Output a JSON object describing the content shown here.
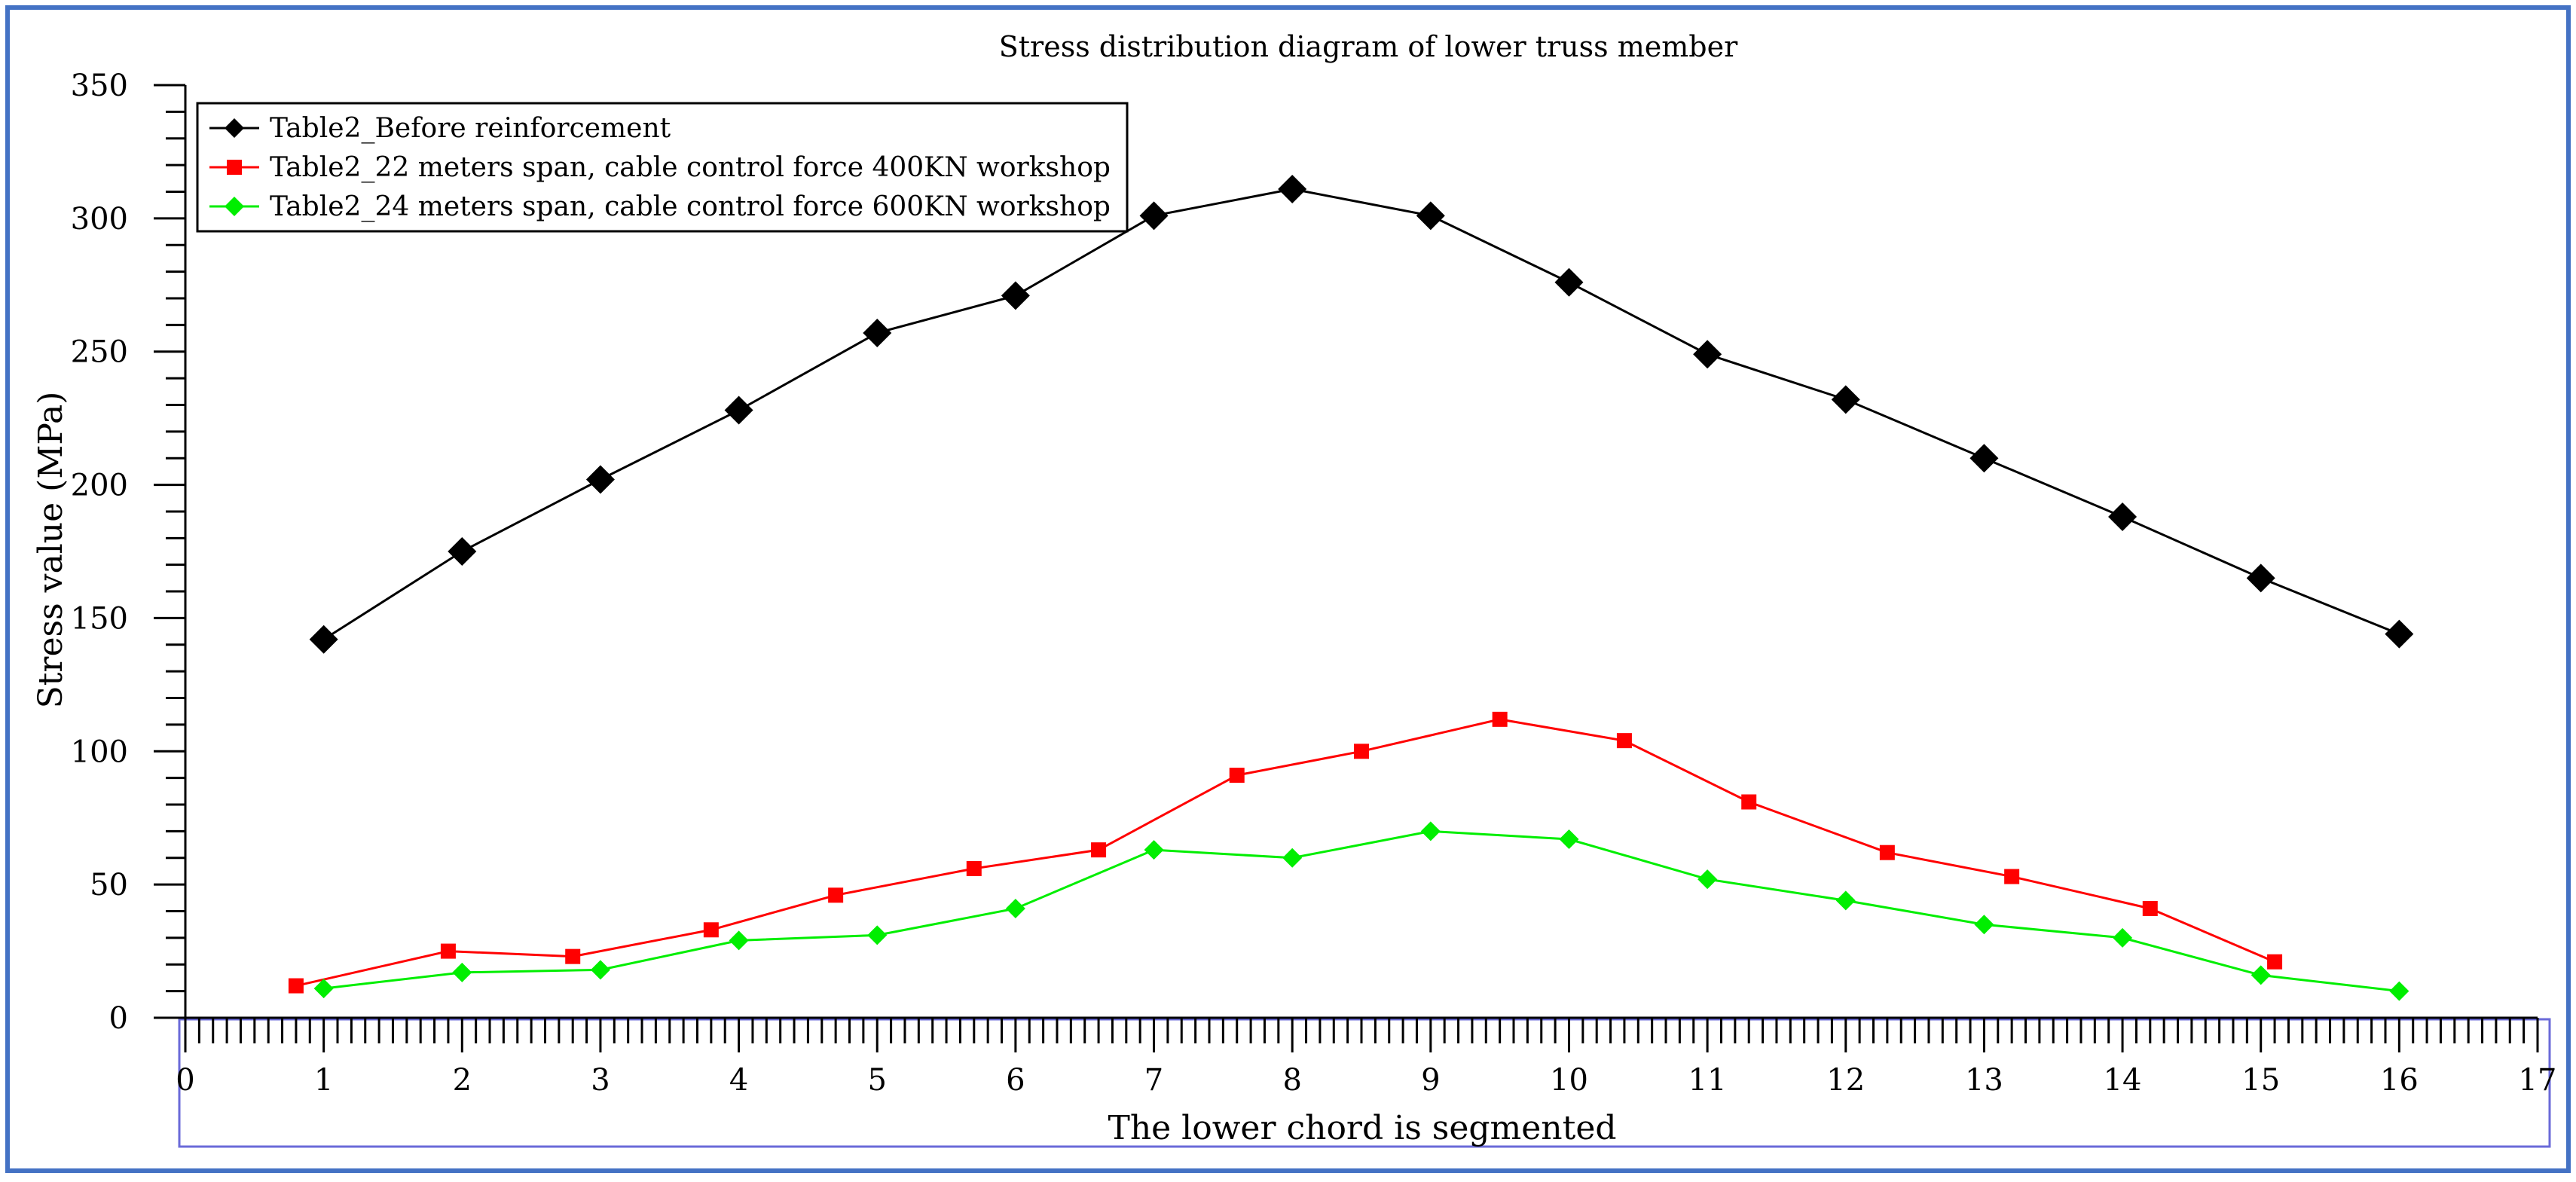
{
  "chart_data": {
    "type": "line",
    "title": "Stress distribution diagram of lower truss member",
    "xlabel": "The lower chord is segmented",
    "ylabel": "Stress value (MPa)",
    "xlim": [
      0,
      17
    ],
    "ylim": [
      0,
      350
    ],
    "x_ticks": [
      "0",
      "1",
      "2",
      "3",
      "4",
      "5",
      "6",
      "7",
      "8",
      "9",
      "10",
      "11",
      "12",
      "13",
      "14",
      "15",
      "16",
      "17"
    ],
    "y_ticks": [
      "0",
      "50",
      "100",
      "150",
      "200",
      "250",
      "300",
      "350"
    ],
    "grid": false,
    "legend_position": "top-left",
    "series": [
      {
        "name": "Table2_Before reinforcement",
        "color": "#000000",
        "marker": "diamond-large",
        "x": [
          1,
          2,
          3,
          4,
          5,
          6,
          7,
          8,
          9,
          10,
          11,
          12,
          13,
          14,
          15,
          16
        ],
        "y": [
          142,
          175,
          202,
          228,
          257,
          271,
          301,
          311,
          301,
          276,
          249,
          232,
          210,
          188,
          165,
          144
        ]
      },
      {
        "name": "Table2_22 meters span, cable control force 400KN workshop",
        "color": "#ff0000",
        "marker": "square",
        "x": [
          0.8,
          1.9,
          2.8,
          3.8,
          4.7,
          5.7,
          6.6,
          7.6,
          8.5,
          9.5,
          10.4,
          11.3,
          12.3,
          13.2,
          14.2,
          15.1
        ],
        "y": [
          12,
          25,
          23,
          33,
          46,
          56,
          63,
          91,
          100,
          112,
          104,
          81,
          62,
          53,
          41,
          21
        ]
      },
      {
        "name": "Table2_24 meters span, cable control force 600KN workshop",
        "color": "#00ee00",
        "marker": "diamond",
        "x": [
          1,
          2,
          3,
          4,
          5,
          6,
          7,
          8,
          9,
          10,
          11,
          12,
          13,
          14,
          15,
          16
        ],
        "y": [
          11,
          17,
          18,
          29,
          31,
          41,
          63,
          60,
          70,
          67,
          52,
          44,
          35,
          30,
          16,
          10
        ]
      }
    ]
  },
  "colors": {
    "frame_border": "#4472c4",
    "axis_box": "#6a6ad8"
  }
}
